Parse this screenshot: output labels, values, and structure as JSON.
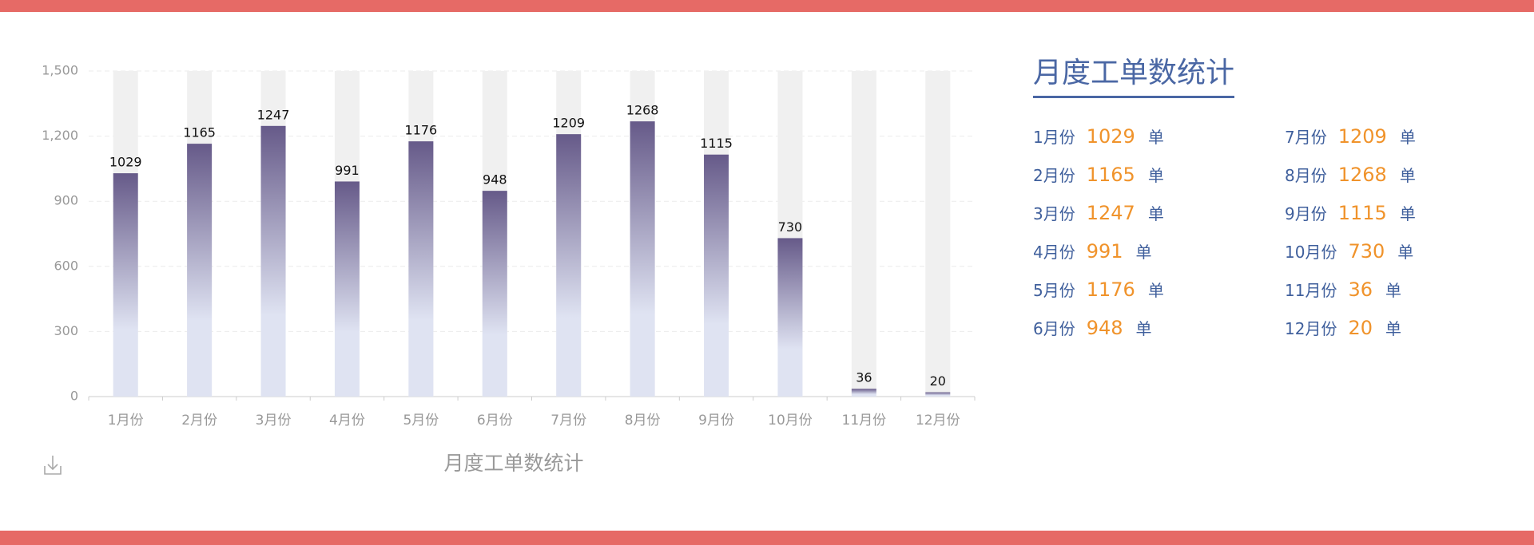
{
  "chart_data": {
    "type": "bar",
    "title": "月度工单数统计",
    "categories": [
      "1月份",
      "2月份",
      "3月份",
      "4月份",
      "5月份",
      "6月份",
      "7月份",
      "8月份",
      "9月份",
      "10月份",
      "11月份",
      "12月份"
    ],
    "values": [
      1029,
      1165,
      1247,
      991,
      1176,
      948,
      1209,
      1268,
      1115,
      730,
      36,
      20
    ],
    "ylim": [
      0,
      1500
    ],
    "yticks": [
      0,
      300,
      600,
      900,
      {
        "value": 1200,
        "label": "1,200"
      },
      {
        "value": 1500,
        "label": "1,500"
      }
    ],
    "grid": true,
    "gradient": [
      "#665a89",
      "#dfe3f2"
    ],
    "track_color": "#f0f0f0"
  },
  "summary": {
    "unit": "单"
  }
}
